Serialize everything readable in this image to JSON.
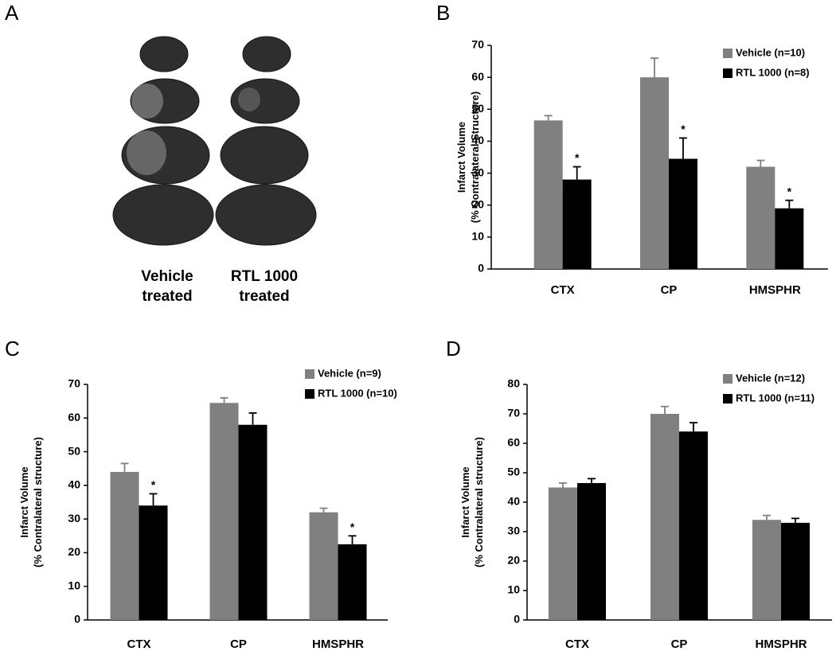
{
  "panel_a": {
    "label": "A",
    "captions": [
      [
        "Vehicle",
        "treated"
      ],
      [
        "RTL 1000",
        "treated"
      ]
    ]
  },
  "chart_data": [
    {
      "type": "bar",
      "label": "B",
      "y_label": [
        "Infarct Volume",
        "(% Contralateral Structure)"
      ],
      "categories": [
        "CTX",
        "CP",
        "HMSPHR"
      ],
      "series": [
        {
          "name": "Vehicle (n=10)",
          "color": "#808080",
          "values": [
            46.5,
            60,
            32
          ],
          "errors": [
            1.5,
            6,
            2
          ],
          "markers": [
            null,
            null,
            null
          ]
        },
        {
          "name": "RTL 1000 (n=8)",
          "color": "#000000",
          "values": [
            28,
            34.5,
            19
          ],
          "errors": [
            4,
            6.5,
            2.5
          ],
          "markers": [
            "*",
            "*",
            "*"
          ]
        }
      ],
      "ylim": [
        0,
        70
      ],
      "yticks": [
        0,
        10,
        20,
        30,
        40,
        50,
        60,
        70
      ]
    },
    {
      "type": "bar",
      "label": "C",
      "y_label": [
        "Infarct Volume",
        "(% Contralateral structure)"
      ],
      "categories": [
        "CTX",
        "CP",
        "HMSPHR"
      ],
      "series": [
        {
          "name": "Vehicle (n=9)",
          "color": "#808080",
          "values": [
            44,
            64.5,
            32
          ],
          "errors": [
            2.5,
            1.5,
            1.2
          ],
          "markers": [
            null,
            null,
            null
          ]
        },
        {
          "name": "RTL 1000 (n=10)",
          "color": "#000000",
          "values": [
            34,
            58,
            22.5
          ],
          "errors": [
            3.5,
            3.5,
            2.5
          ],
          "markers": [
            "*",
            null,
            "*"
          ]
        }
      ],
      "ylim": [
        0,
        70
      ],
      "yticks": [
        0,
        10,
        20,
        30,
        40,
        50,
        60,
        70
      ]
    },
    {
      "type": "bar",
      "label": "D",
      "y_label": [
        "Infarct Volume",
        "(% Contralateral structure)"
      ],
      "categories": [
        "CTX",
        "CP",
        "HMSPHR"
      ],
      "series": [
        {
          "name": "Vehicle (n=12)",
          "color": "#808080",
          "values": [
            45,
            70,
            34
          ],
          "errors": [
            1.5,
            2.5,
            1.5
          ],
          "markers": [
            null,
            null,
            null
          ]
        },
        {
          "name": "RTL 1000 (n=11)",
          "color": "#000000",
          "values": [
            46.5,
            64,
            33
          ],
          "errors": [
            1.5,
            3,
            1.5
          ],
          "markers": [
            null,
            null,
            null
          ]
        }
      ],
      "ylim": [
        0,
        80
      ],
      "yticks": [
        0,
        10,
        20,
        30,
        40,
        50,
        60,
        70,
        80
      ]
    }
  ]
}
